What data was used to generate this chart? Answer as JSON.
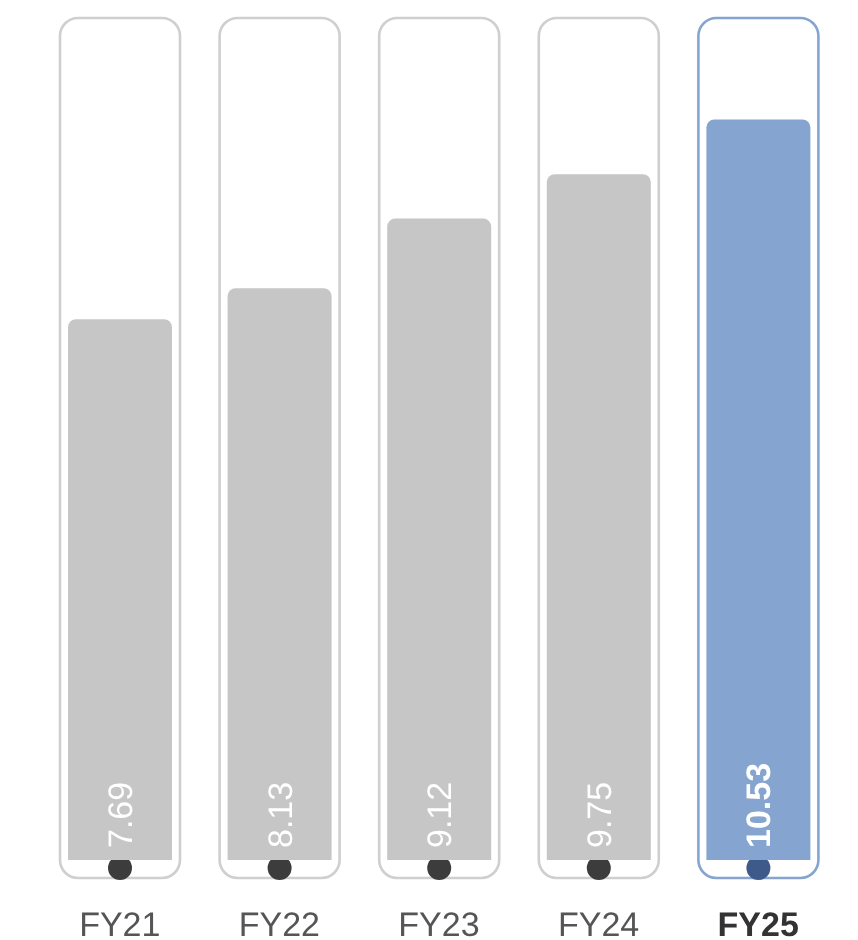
{
  "chart_data": {
    "type": "bar",
    "categories": [
      "FY21",
      "FY22",
      "FY23",
      "FY24",
      "FY25"
    ],
    "values": [
      7.69,
      8.13,
      9.12,
      9.75,
      10.53
    ],
    "colors": [
      "#c6c6c6",
      "#c6c6c6",
      "#c6c6c6",
      "#c6c6c6",
      "#85a5d0"
    ],
    "data_labels": true
  }
}
